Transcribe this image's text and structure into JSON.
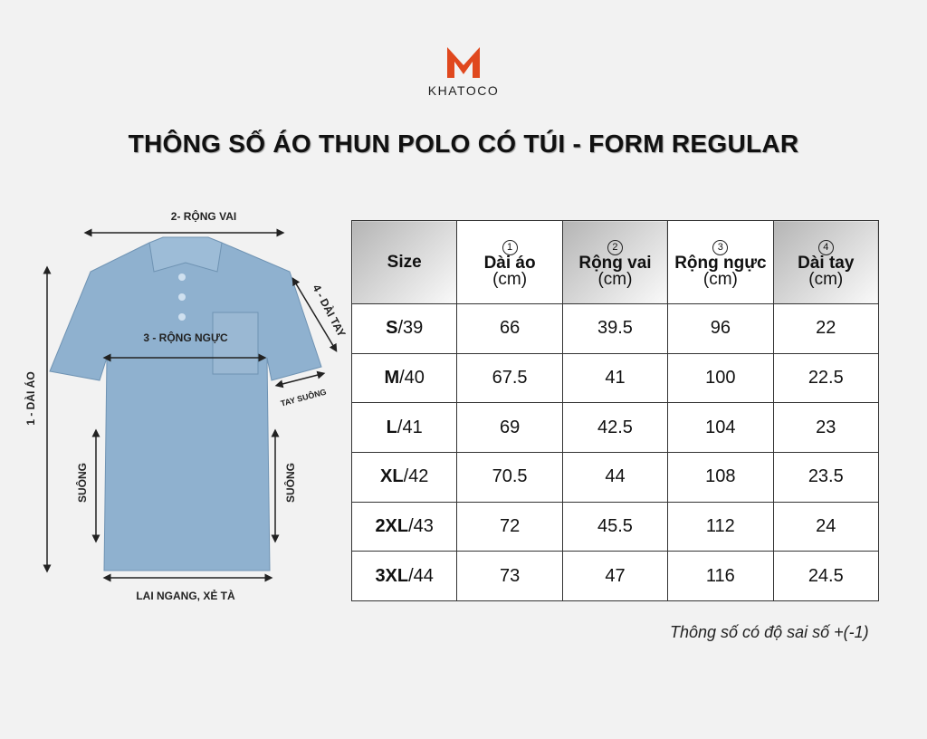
{
  "logo": {
    "brand": "KHATOCO"
  },
  "title": "THÔNG SỐ ÁO THUN POLO CÓ TÚI - FORM REGULAR",
  "diagram": {
    "shoulder": "2- RỘNG VAI",
    "chest": "3 - RỘNG NGỰC",
    "sleeve": "4 - DÀI TAY",
    "sleeve_note": "TAY SUÔNG",
    "length": "1 - DÀI ÁO",
    "side_left": "SUÔNG",
    "side_right": "SUÔNG",
    "hem": "LAI NGANG, XẺ TÀ"
  },
  "table": {
    "header": [
      {
        "name": "Size"
      },
      {
        "num": "1",
        "name": "Dài áo",
        "unit": "(cm)"
      },
      {
        "num": "2",
        "name": "Rộng vai",
        "unit": "(cm)"
      },
      {
        "num": "3",
        "name": "Rộng ngực",
        "unit": "(cm)"
      },
      {
        "num": "4",
        "name": "Dài tay",
        "unit": "(cm)"
      }
    ],
    "rows": [
      [
        {
          "bold": "S",
          "rest": "/39"
        },
        66,
        39.5,
        96,
        22
      ],
      [
        {
          "bold": "M",
          "rest": "/40"
        },
        67.5,
        41,
        100,
        22.5
      ],
      [
        {
          "bold": "L",
          "rest": "/41"
        },
        69,
        42.5,
        104,
        23
      ],
      [
        {
          "bold": "XL",
          "rest": "/42"
        },
        70.5,
        44,
        108,
        23.5
      ],
      [
        {
          "bold": "2XL",
          "rest": "/43"
        },
        72,
        45.5,
        112,
        24
      ],
      [
        {
          "bold": "3XL",
          "rest": "/44"
        },
        73,
        47,
        116,
        24.5
      ]
    ]
  },
  "note": "Thông số có độ sai số +(-1)"
}
